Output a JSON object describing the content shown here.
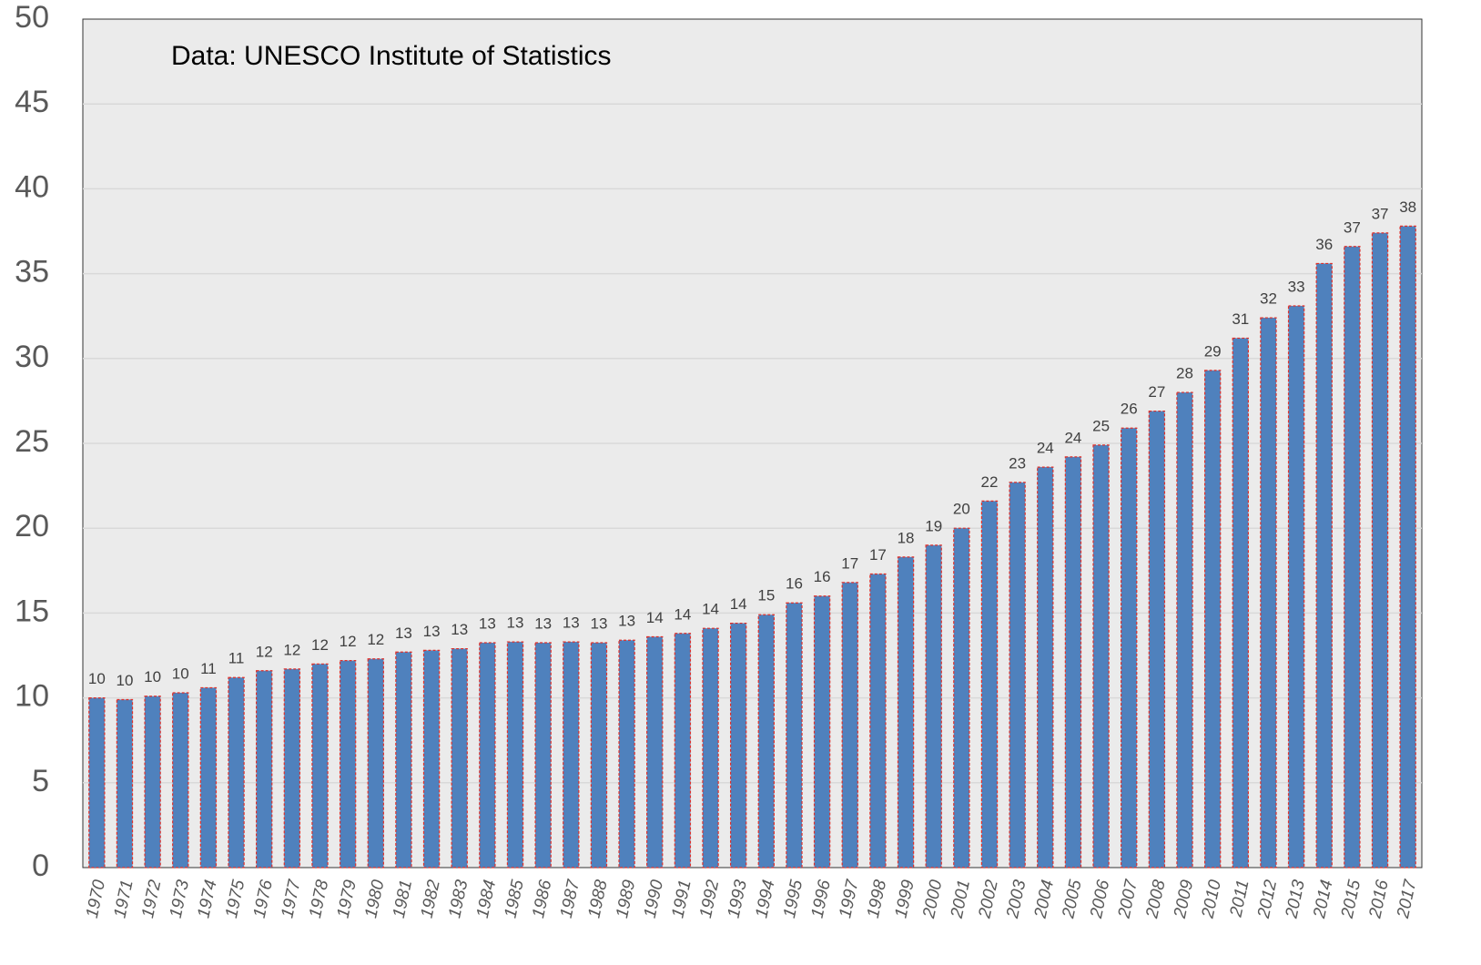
{
  "chart_data": {
    "type": "bar",
    "annotation": "Data: UNESCO Institute of Statistics",
    "categories": [
      "1970",
      "1971",
      "1972",
      "1973",
      "1974",
      "1975",
      "1976",
      "1977",
      "1978",
      "1979",
      "1980",
      "1981",
      "1982",
      "1983",
      "1984",
      "1985",
      "1986",
      "1987",
      "1988",
      "1989",
      "1990",
      "1991",
      "1992",
      "1993",
      "1994",
      "1995",
      "1996",
      "1997",
      "1998",
      "1999",
      "2000",
      "2001",
      "2002",
      "2003",
      "2004",
      "2005",
      "2006",
      "2007",
      "2008",
      "2009",
      "2010",
      "2011",
      "2012",
      "2013",
      "2014",
      "2015",
      "2016",
      "2017"
    ],
    "values": [
      10.0,
      9.9,
      10.1,
      10.3,
      10.6,
      11.2,
      11.6,
      11.7,
      12.0,
      12.2,
      12.3,
      12.7,
      12.8,
      12.9,
      13.25,
      13.3,
      13.25,
      13.3,
      13.25,
      13.4,
      13.6,
      13.8,
      14.1,
      14.4,
      14.9,
      15.6,
      16.0,
      16.8,
      17.3,
      18.3,
      19.0,
      20.0,
      21.6,
      22.7,
      23.6,
      24.2,
      24.9,
      25.9,
      26.9,
      28.0,
      29.3,
      31.2,
      32.4,
      33.1,
      35.6,
      36.6,
      37.4,
      37.8
    ],
    "value_labels": [
      "10",
      "10",
      "10",
      "10",
      "11",
      "11",
      "12",
      "12",
      "12",
      "12",
      "12",
      "13",
      "13",
      "13",
      "13",
      "13",
      "13",
      "13",
      "13",
      "13",
      "14",
      "14",
      "14",
      "14",
      "15",
      "16",
      "16",
      "17",
      "17",
      "18",
      "19",
      "20",
      "22",
      "23",
      "24",
      "24",
      "25",
      "26",
      "27",
      "28",
      "29",
      "31",
      "32",
      "33",
      "36",
      "37",
      "37",
      "38"
    ],
    "color": "#4f81bd",
    "edge_color": "#e0302a",
    "ylim": [
      0,
      50
    ],
    "yticks": [
      0,
      5,
      10,
      15,
      20,
      25,
      30,
      35,
      40,
      45,
      50
    ],
    "grid": true
  }
}
